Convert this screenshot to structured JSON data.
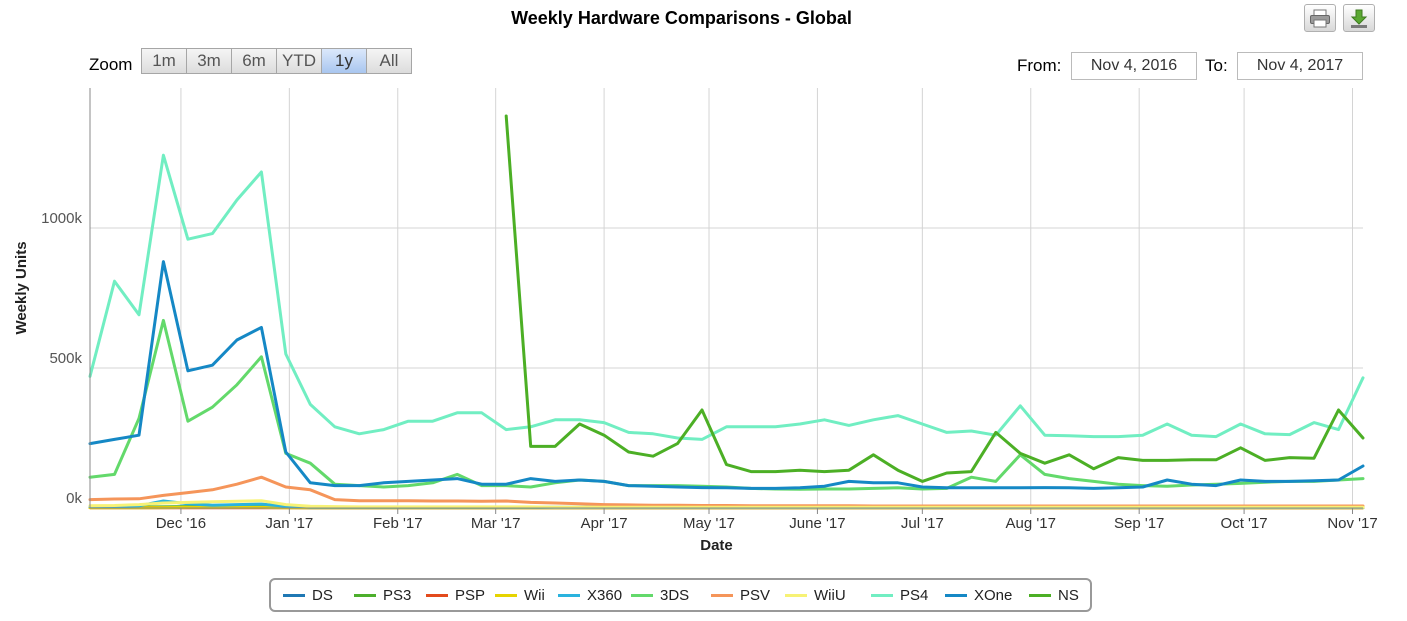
{
  "title": "Weekly Hardware Comparisons - Global",
  "toolbar": {
    "print_icon": "printer-icon",
    "download_icon": "download-icon"
  },
  "zoom": {
    "label": "Zoom",
    "buttons": [
      "1m",
      "3m",
      "6m",
      "YTD",
      "1y",
      "All"
    ],
    "active": "1y"
  },
  "range": {
    "from_label": "From:",
    "from_value": "Nov 4, 2016",
    "to_label": "To:",
    "to_value": "Nov 4, 2017"
  },
  "chart_data": {
    "type": "line",
    "title": "Weekly Hardware Comparisons - Global",
    "xlabel": "Date",
    "ylabel": "Weekly Units",
    "xlim": [
      "2016-11-05",
      "2017-11-04"
    ],
    "ylim": [
      0,
      1500000
    ],
    "y_ticks": [
      {
        "value": 0,
        "label": "0k"
      },
      {
        "value": 500000,
        "label": "500k"
      },
      {
        "value": 1000000,
        "label": "1000k"
      }
    ],
    "x_ticks": [
      {
        "date": "2016-12-01",
        "label": "Dec '16"
      },
      {
        "date": "2017-01-01",
        "label": "Jan '17"
      },
      {
        "date": "2017-02-01",
        "label": "Feb '17"
      },
      {
        "date": "2017-03-01",
        "label": "Mar '17"
      },
      {
        "date": "2017-04-01",
        "label": "Apr '17"
      },
      {
        "date": "2017-05-01",
        "label": "May '17"
      },
      {
        "date": "2017-06-01",
        "label": "June '17"
      },
      {
        "date": "2017-07-01",
        "label": "Jul '17"
      },
      {
        "date": "2017-08-01",
        "label": "Aug '17"
      },
      {
        "date": "2017-09-01",
        "label": "Sep '17"
      },
      {
        "date": "2017-10-01",
        "label": "Oct '17"
      },
      {
        "date": "2017-11-01",
        "label": "Nov '17"
      }
    ],
    "grid": true,
    "legend_position": "bottom",
    "x": [
      "2016-11-05",
      "2016-11-12",
      "2016-11-19",
      "2016-11-26",
      "2016-12-03",
      "2016-12-10",
      "2016-12-17",
      "2016-12-24",
      "2016-12-31",
      "2017-01-07",
      "2017-01-14",
      "2017-01-21",
      "2017-01-28",
      "2017-02-04",
      "2017-02-11",
      "2017-02-18",
      "2017-02-25",
      "2017-03-04",
      "2017-03-11",
      "2017-03-18",
      "2017-03-25",
      "2017-04-01",
      "2017-04-08",
      "2017-04-15",
      "2017-04-22",
      "2017-04-29",
      "2017-05-06",
      "2017-05-13",
      "2017-05-20",
      "2017-05-27",
      "2017-06-03",
      "2017-06-10",
      "2017-06-17",
      "2017-06-24",
      "2017-07-01",
      "2017-07-08",
      "2017-07-15",
      "2017-07-22",
      "2017-07-29",
      "2017-08-05",
      "2017-08-12",
      "2017-08-19",
      "2017-08-26",
      "2017-09-02",
      "2017-09-09",
      "2017-09-16",
      "2017-09-23",
      "2017-09-30",
      "2017-10-07",
      "2017-10-14",
      "2017-10-21",
      "2017-10-28",
      "2017-11-04"
    ],
    "series": [
      {
        "name": "DS",
        "color": "#1f78b4",
        "values": [
          2000,
          2000,
          2000,
          2500,
          3000,
          3000,
          3000,
          3000,
          2000,
          1000,
          1000,
          1000,
          1000,
          1000,
          1000,
          1000,
          1000,
          1000,
          1000,
          1000,
          1000,
          1000,
          1000,
          1000,
          1000,
          1000,
          1000,
          1000,
          1000,
          1000,
          1000,
          1000,
          1000,
          1000,
          1000,
          1000,
          1000,
          1000,
          1000,
          1000,
          1000,
          1000,
          1000,
          1000,
          1000,
          1000,
          1000,
          1000,
          1000,
          1000,
          1000,
          1000,
          1000
        ]
      },
      {
        "name": "PS3",
        "color": "#4daf2c",
        "values": [
          3000,
          3000,
          3500,
          4000,
          5000,
          5000,
          5000,
          6000,
          4000,
          3000,
          2000,
          2000,
          2000,
          2000,
          2000,
          2000,
          2000,
          2000,
          2000,
          2000,
          2000,
          2000,
          2000,
          2000,
          2000,
          2000,
          2000,
          2000,
          2000,
          2000,
          2000,
          2000,
          2000,
          2000,
          2000,
          2000,
          2000,
          2000,
          2000,
          2000,
          2000,
          2000,
          2000,
          2000,
          2000,
          2000,
          2000,
          2000,
          2000,
          2000,
          2000,
          2000,
          2000
        ]
      },
      {
        "name": "PSP",
        "color": "#e34a1c",
        "values": [
          1000,
          1000,
          1000,
          1000,
          1000,
          1000,
          1000,
          1000,
          1000,
          1000,
          1000,
          1000,
          1000,
          1000,
          1000,
          1000,
          1000,
          1000,
          1000,
          1000,
          1000,
          1000,
          1000,
          1000,
          1000,
          1000,
          1000,
          1000,
          1000,
          1000,
          1000,
          1000,
          1000,
          1000,
          1000,
          1000,
          1000,
          1000,
          1000,
          1000,
          1000,
          1000,
          1000,
          1000,
          1000,
          1000,
          1000,
          1000,
          1000,
          1000,
          1000,
          1000,
          1000
        ]
      },
      {
        "name": "Wii",
        "color": "#e6d400",
        "values": [
          1000,
          1000,
          1000,
          1500,
          2000,
          2000,
          2000,
          2000,
          1000,
          1000,
          1000,
          1000,
          1000,
          1000,
          1000,
          1000,
          1000,
          1000,
          1000,
          1000,
          1000,
          1000,
          1000,
          1000,
          1000,
          1000,
          1000,
          1000,
          1000,
          1000,
          1000,
          1000,
          1000,
          1000,
          1000,
          1000,
          1000,
          1000,
          1000,
          1000,
          1000,
          1000,
          1000,
          1000,
          1000,
          1000,
          1000,
          1000,
          1000,
          1000,
          1000,
          1000,
          1000
        ]
      },
      {
        "name": "X360",
        "color": "#2ab3de",
        "values": [
          5000,
          6000,
          8000,
          25000,
          15000,
          10000,
          12000,
          14000,
          6000,
          3000,
          3000,
          2500,
          2500,
          2500,
          2500,
          2500,
          2500,
          2500,
          2500,
          2000,
          2000,
          2000,
          2000,
          2000,
          2000,
          2000,
          2000,
          2000,
          2000,
          2000,
          2000,
          2000,
          2000,
          2000,
          2000,
          2000,
          2000,
          2000,
          2000,
          2000,
          2000,
          2000,
          2000,
          2000,
          2000,
          2000,
          2000,
          2000,
          2000,
          2000,
          2000,
          2000,
          2000
        ]
      },
      {
        "name": "3DS",
        "color": "#63d96b",
        "values": [
          110000,
          120000,
          320000,
          670000,
          310000,
          360000,
          440000,
          540000,
          195000,
          160000,
          85000,
          80000,
          75000,
          80000,
          90000,
          120000,
          80000,
          80000,
          75000,
          90000,
          100000,
          95000,
          80000,
          80000,
          80000,
          78000,
          75000,
          70000,
          68000,
          67000,
          68000,
          68000,
          70000,
          72000,
          68000,
          70000,
          110000,
          95000,
          190000,
          120000,
          105000,
          95000,
          85000,
          80000,
          78000,
          82000,
          85000,
          88000,
          92000,
          95000,
          95000,
          100000,
          105000
        ]
      },
      {
        "name": "PSV",
        "color": "#f5955a",
        "values": [
          30000,
          32000,
          33000,
          45000,
          55000,
          65000,
          85000,
          110000,
          75000,
          65000,
          30000,
          26000,
          26000,
          26000,
          25000,
          25000,
          24000,
          25000,
          20000,
          18000,
          15000,
          12000,
          11000,
          10000,
          10000,
          9000,
          9000,
          8000,
          8000,
          8000,
          8000,
          8000,
          7000,
          7000,
          7000,
          7000,
          7000,
          7000,
          7000,
          7000,
          7000,
          7000,
          7000,
          7000,
          7000,
          7000,
          7000,
          7000,
          7000,
          7000,
          7000,
          7000,
          7000
        ]
      },
      {
        "name": "WiiU",
        "color": "#f7f275",
        "values": [
          8000,
          9000,
          12000,
          18000,
          20000,
          22000,
          24000,
          26000,
          12000,
          6000,
          5000,
          4000,
          4000,
          4000,
          4000,
          4000,
          4000,
          4000,
          4000,
          3000,
          3000,
          3000,
          3000,
          3000,
          3000,
          3000,
          3000,
          3000,
          3000,
          3000,
          3000,
          3000,
          3000,
          3000,
          3000,
          3000,
          3000,
          3000,
          3000,
          3000,
          3000,
          3000,
          3000,
          3000,
          3000,
          3000,
          3000,
          3000,
          3000,
          3000,
          3000,
          3000,
          3000
        ]
      },
      {
        "name": "PS4",
        "color": "#71eec2",
        "values": [
          470000,
          810000,
          690000,
          1260000,
          960000,
          980000,
          1100000,
          1200000,
          550000,
          370000,
          290000,
          265000,
          280000,
          310000,
          310000,
          340000,
          340000,
          280000,
          290000,
          315000,
          315000,
          305000,
          270000,
          265000,
          250000,
          245000,
          290000,
          290000,
          290000,
          300000,
          315000,
          295000,
          315000,
          330000,
          300000,
          270000,
          275000,
          260000,
          365000,
          260000,
          258000,
          255000,
          255000,
          260000,
          300000,
          260000,
          255000,
          300000,
          265000,
          262000,
          305000,
          280000,
          465000
        ]
      },
      {
        "name": "XOne",
        "color": "#1588c5",
        "values": [
          230000,
          245000,
          260000,
          880000,
          490000,
          510000,
          600000,
          645000,
          200000,
          90000,
          80000,
          80000,
          90000,
          95000,
          100000,
          105000,
          85000,
          85000,
          105000,
          95000,
          100000,
          95000,
          80000,
          78000,
          75000,
          73000,
          72000,
          70000,
          70000,
          72000,
          78000,
          95000,
          90000,
          90000,
          75000,
          72000,
          72000,
          72000,
          72000,
          73000,
          72000,
          70000,
          72000,
          75000,
          100000,
          85000,
          80000,
          100000,
          95000,
          95000,
          97000,
          100000,
          150000
        ]
      },
      {
        "name": "NS",
        "color": "#4caf25",
        "values": [
          null,
          null,
          null,
          null,
          null,
          null,
          null,
          null,
          null,
          null,
          null,
          null,
          null,
          null,
          null,
          null,
          null,
          1400000,
          220000,
          220000,
          300000,
          260000,
          200000,
          185000,
          230000,
          350000,
          155000,
          130000,
          130000,
          135000,
          130000,
          135000,
          190000,
          135000,
          95000,
          125000,
          130000,
          270000,
          195000,
          160000,
          190000,
          140000,
          180000,
          170000,
          170000,
          172000,
          172000,
          215000,
          170000,
          180000,
          178000,
          350000,
          250000
        ]
      }
    ]
  }
}
